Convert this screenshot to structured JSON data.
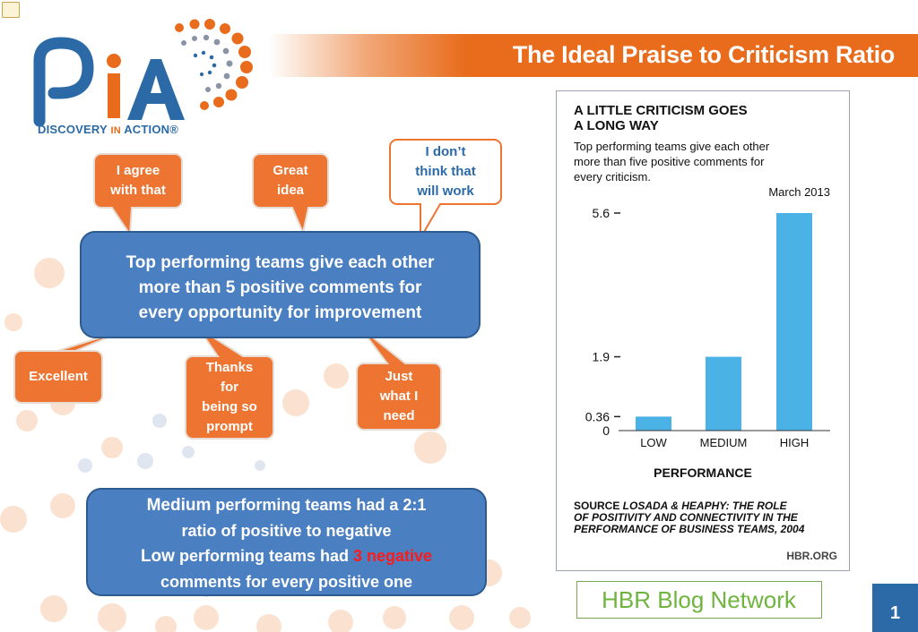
{
  "header": {
    "title": "The Ideal Praise to Criticism Ratio"
  },
  "logo": {
    "name": "PiA",
    "brand_text": "DISCOVERY IN ACTION",
    "brand_parts": [
      "DISCOVERY ",
      "IN",
      " ACTION®"
    ]
  },
  "bubbles": {
    "agree": "I agree\nwith that",
    "great_idea": "Great\nidea",
    "dont_think": "I don’t\nthink that\nwill work",
    "excellent": "Excellent",
    "thanks": "Thanks\nfor\nbeing so\nprompt",
    "just_what": "Just\nwhat I\nneed"
  },
  "main_box": {
    "line1": "Top performing teams give each other",
    "line2": "more than 5 positive comments for",
    "line3": "every opportunity for improvement"
  },
  "bottom_box": {
    "medium_word": "Medium",
    "medium_rest": " performing teams had a 2:1",
    "line2": "ratio of positive to negative",
    "low_word": "Low",
    "low_rest": " performing teams had ",
    "highlight": "3 negative",
    "line4": "comments for every positive one"
  },
  "colors": {
    "orange": "#e86c1c",
    "blue": "#2b6aa6",
    "box_blue": "#4a7fc1",
    "bar_blue": "#4bb2e6",
    "highlight_red": "#ff1a1a"
  },
  "chart_data": {
    "type": "bar",
    "title": "A LITTLE CRITICISM GOES\nA LONG WAY",
    "title_lines": [
      "A LITTLE CRITICISM GOES",
      "A LONG WAY"
    ],
    "subtitle_lines": [
      "Top performing teams give each other",
      "more than five positive comments for",
      "every criticism."
    ],
    "date": "March 2013",
    "categories": [
      "LOW",
      "MEDIUM",
      "HIGH"
    ],
    "values": [
      0.36,
      1.9,
      5.6
    ],
    "ytick_labels": [
      "5.6",
      "1.9",
      "0.36",
      "0"
    ],
    "yticks": [
      5.6,
      1.9,
      0.36,
      0
    ],
    "ylim": [
      0,
      5.6
    ],
    "xlabel": "PERFORMANCE",
    "ylabel": "",
    "grid": false,
    "source_label": "SOURCE",
    "source_lines": [
      " LOSADA & HEAPHY: THE ROLE",
      "OF POSITIVITY AND CONNECTIVITY IN THE",
      "PERFORMANCE OF BUSINESS TEAMS, 2004"
    ],
    "credit": "HBR.ORG"
  },
  "footer": {
    "hbr_logo": "HBR Blog Network",
    "page_number": "1"
  }
}
